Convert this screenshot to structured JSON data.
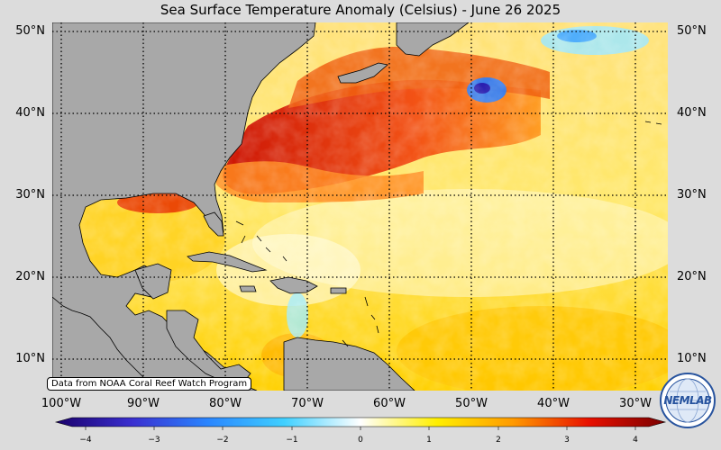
{
  "title": "Sea Surface Temperature Anomaly (Celsius) - June 26 2025",
  "credit": "Data from NOAA Coral Reef Watch Program",
  "logo_text": "NEMLAB",
  "lat_labels": [
    "50°N",
    "40°N",
    "30°N",
    "20°N",
    "10°N"
  ],
  "lon_labels": [
    "100°W",
    "90°W",
    "80°W",
    "70°W",
    "60°W",
    "50°W",
    "40°W",
    "30°W"
  ],
  "colorbar": {
    "ticks": [
      "−4",
      "−3",
      "−2",
      "−1",
      "0",
      "1",
      "2",
      "3",
      "4"
    ],
    "min": -4.5,
    "max": 4.5,
    "stops": [
      "#1a006b",
      "#3a2fd0",
      "#2a86ff",
      "#40d0ff",
      "#ffffff",
      "#ffef00",
      "#ff9a00",
      "#e81000",
      "#7a0000"
    ]
  },
  "colors": {
    "land": "#a8a8a8",
    "ocean_warm": "#ffd23a",
    "ocean_hot": "#e83a0a",
    "ocean_cool": "#40c8ff"
  },
  "icons": [
    "logo-globe-icon"
  ]
}
